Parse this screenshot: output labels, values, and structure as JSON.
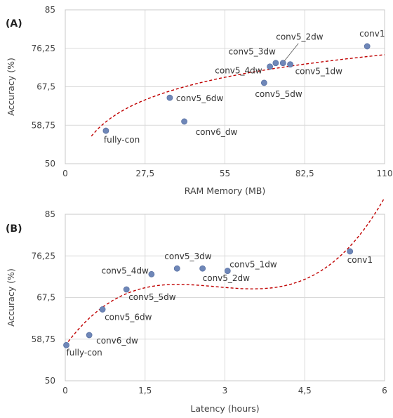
{
  "chart_data": [
    {
      "type": "scatter",
      "panel_label": "(A)",
      "xlabel": "RAM Memory (MB)",
      "ylabel": "Accuracy (%)",
      "xlim": [
        0,
        110
      ],
      "ylim": [
        50,
        85
      ],
      "x_ticks": [
        "0",
        "27,5",
        "55",
        "82,5",
        "110"
      ],
      "y_ticks": [
        "50",
        "58,75",
        "67,5",
        "76,25",
        "85"
      ],
      "x_tick_values": [
        0,
        27.5,
        55,
        82.5,
        110
      ],
      "y_tick_values": [
        50,
        58.75,
        67.5,
        76.25,
        85
      ],
      "grid": true,
      "trendline": "logarithmic",
      "trend_color": "#c00000",
      "marker_color": "#6f87b8",
      "points": [
        {
          "label": "fully-con",
          "x": 14,
          "y": 57.5
        },
        {
          "label": "conv5_6dw",
          "x": 36,
          "y": 65.0
        },
        {
          "label": "conv6_dw",
          "x": 41,
          "y": 59.6
        },
        {
          "label": "conv5_5dw",
          "x": 68.5,
          "y": 68.4
        },
        {
          "label": "conv5_4dw",
          "x": 70.5,
          "y": 72.1
        },
        {
          "label": "conv5_3dw",
          "x": 72.5,
          "y": 72.9
        },
        {
          "label": "conv5_2dw",
          "x": 75,
          "y": 72.9
        },
        {
          "label": "conv5_1dw",
          "x": 77.5,
          "y": 72.6
        },
        {
          "label": "conv1",
          "x": 104,
          "y": 76.7
        }
      ]
    },
    {
      "type": "scatter",
      "panel_label": "(B)",
      "xlabel": "Latency (hours)",
      "ylabel": "Accuracy (%)",
      "xlim": [
        0,
        6
      ],
      "ylim": [
        50,
        85
      ],
      "x_ticks": [
        "0",
        "1,5",
        "3",
        "4,5",
        "6"
      ],
      "y_ticks": [
        "50",
        "58,75",
        "67,5",
        "76,25",
        "85"
      ],
      "x_tick_values": [
        0,
        1.5,
        3,
        4.5,
        6
      ],
      "y_tick_values": [
        50,
        58.75,
        67.5,
        76.25,
        85
      ],
      "grid": true,
      "trendline": "polynomial",
      "trend_color": "#c00000",
      "marker_color": "#6f87b8",
      "points": [
        {
          "label": "fully-con",
          "x": 0.02,
          "y": 57.5
        },
        {
          "label": "conv6_dw",
          "x": 0.45,
          "y": 59.6
        },
        {
          "label": "conv5_6dw",
          "x": 0.7,
          "y": 65.0
        },
        {
          "label": "conv5_5dw",
          "x": 1.15,
          "y": 69.2
        },
        {
          "label": "conv5_4dw",
          "x": 1.62,
          "y": 72.4
        },
        {
          "label": "conv5_3dw",
          "x": 2.1,
          "y": 73.6
        },
        {
          "label": "conv5_2dw",
          "x": 2.58,
          "y": 73.6
        },
        {
          "label": "conv5_1dw",
          "x": 3.05,
          "y": 73.1
        },
        {
          "label": "conv1",
          "x": 5.35,
          "y": 77.2
        }
      ]
    }
  ]
}
